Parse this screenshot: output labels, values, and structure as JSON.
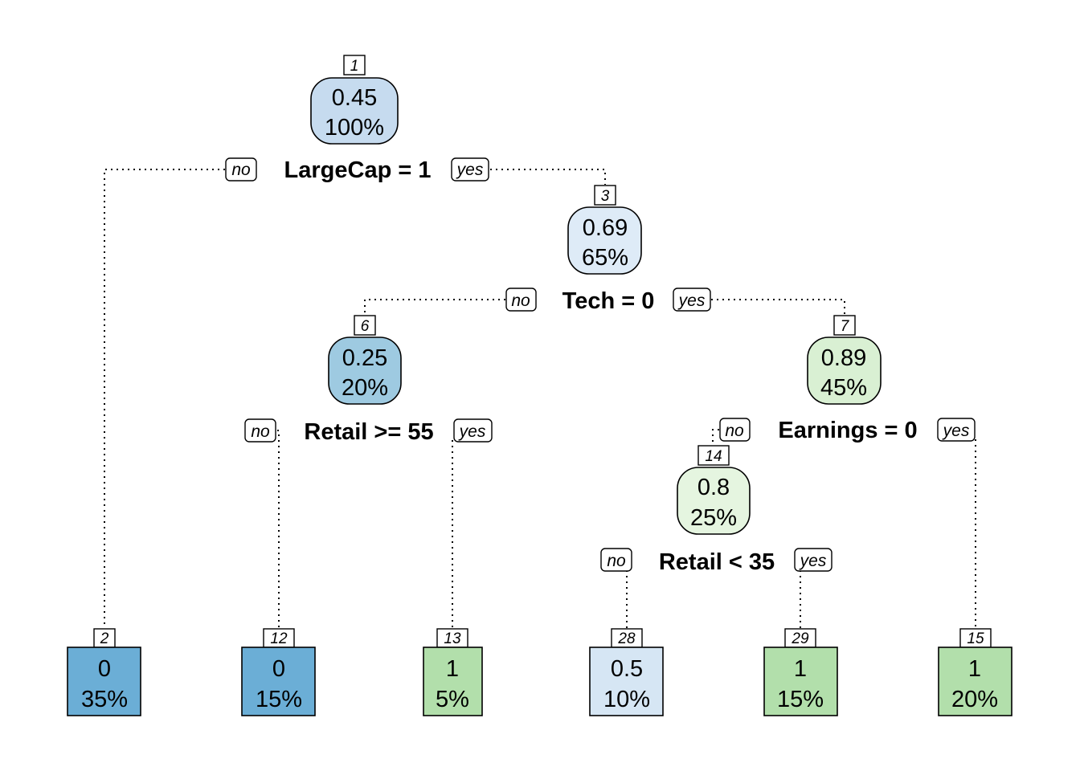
{
  "nodes": {
    "n1": {
      "id": "1",
      "value": "0.45",
      "pct": "100%",
      "color": "#c6dbef"
    },
    "n3": {
      "id": "3",
      "value": "0.69",
      "pct": "65%",
      "color": "#deebf7"
    },
    "n6": {
      "id": "6",
      "value": "0.25",
      "pct": "20%",
      "color": "#9ecae1"
    },
    "n7": {
      "id": "7",
      "value": "0.89",
      "pct": "45%",
      "color": "#d9f0d3"
    },
    "n14": {
      "id": "14",
      "value": "0.8",
      "pct": "25%",
      "color": "#e5f5e0"
    },
    "n2": {
      "id": "2",
      "value": "0",
      "pct": "35%",
      "color": "#6baed6"
    },
    "n12": {
      "id": "12",
      "value": "0",
      "pct": "15%",
      "color": "#6baed6"
    },
    "n13": {
      "id": "13",
      "value": "1",
      "pct": "5%",
      "color": "#b2dfab"
    },
    "n28": {
      "id": "28",
      "value": "0.5",
      "pct": "10%",
      "color": "#d6e6f4"
    },
    "n29": {
      "id": "29",
      "value": "1",
      "pct": "15%",
      "color": "#b2dfab"
    },
    "n15": {
      "id": "15",
      "value": "1",
      "pct": "20%",
      "color": "#b2dfab"
    }
  },
  "splits": {
    "n1": "LargeCap = 1",
    "n3": "Tech = 0",
    "n6": "Retail >= 55",
    "n7": "Earnings = 0",
    "n14": "Retail < 35"
  },
  "branch_labels": {
    "no": "no",
    "yes": "yes"
  }
}
